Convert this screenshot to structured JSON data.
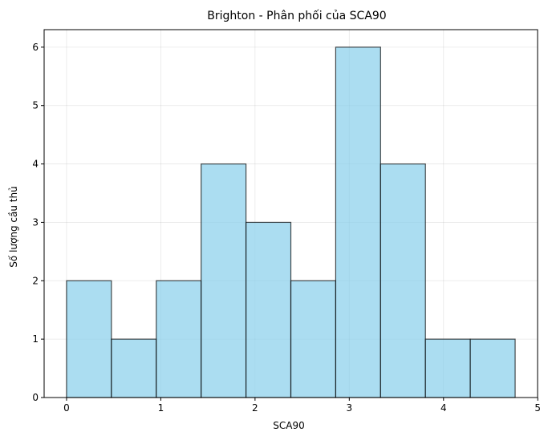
{
  "chart_data": {
    "type": "bar",
    "title": "Brighton - Phân phối của SCA90",
    "xlabel": "SCA90",
    "ylabel": "Số lượng cầu thủ",
    "bins": [
      {
        "x0": 0.0,
        "x1": 0.476,
        "count": 2
      },
      {
        "x0": 0.476,
        "x1": 0.952,
        "count": 1
      },
      {
        "x0": 0.952,
        "x1": 1.428,
        "count": 2
      },
      {
        "x0": 1.428,
        "x1": 1.904,
        "count": 4
      },
      {
        "x0": 1.904,
        "x1": 2.38,
        "count": 3
      },
      {
        "x0": 2.38,
        "x1": 2.856,
        "count": 2
      },
      {
        "x0": 2.856,
        "x1": 3.332,
        "count": 6
      },
      {
        "x0": 3.332,
        "x1": 3.808,
        "count": 4
      },
      {
        "x0": 3.808,
        "x1": 4.284,
        "count": 1
      },
      {
        "x0": 4.284,
        "x1": 4.76,
        "count": 1
      }
    ],
    "xticks": [
      "0",
      "1",
      "2",
      "3",
      "4",
      "5"
    ],
    "yticks": [
      "0",
      "1",
      "2",
      "3",
      "4",
      "5",
      "6"
    ],
    "xlim": [
      -0.238,
      4.998
    ],
    "ylim": [
      0,
      6.3
    ],
    "grid": true,
    "bar_color": "#87CEEB",
    "edge_color": "#000000"
  }
}
